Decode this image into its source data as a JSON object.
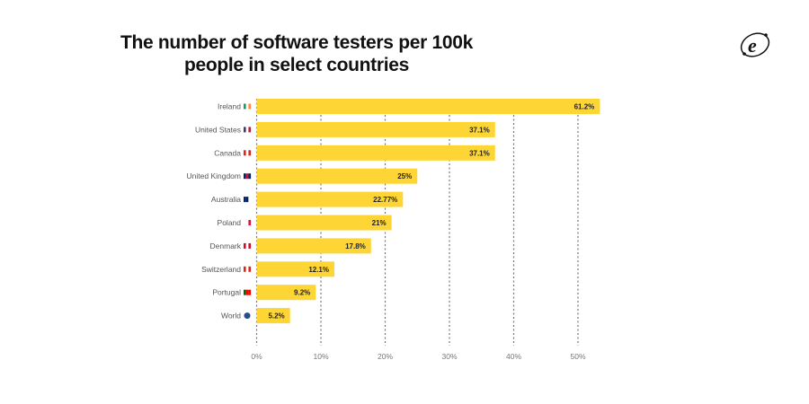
{
  "chart_data": {
    "type": "bar",
    "orientation": "horizontal",
    "title": "The number of software testers per 100k people in select countries",
    "categories": [
      "Ireland",
      "United States",
      "Canada",
      "United Kingdom",
      "Australia",
      "Poland",
      "Denmark",
      "Switzerland",
      "Portugal",
      "World"
    ],
    "category_icons": [
      "ireland-flag-icon",
      "us-flag-icon",
      "canada-flag-icon",
      "uk-flag-icon",
      "australia-flag-icon",
      "poland-flag-icon",
      "denmark-flag-icon",
      "switzerland-flag-icon",
      "portugal-flag-icon",
      "globe-icon"
    ],
    "values": [
      61.2,
      37.1,
      37.1,
      25,
      22.77,
      21,
      17.8,
      12.1,
      9.2,
      5.2
    ],
    "value_labels": [
      "61.2%",
      "37.1%",
      "37.1%",
      "25%",
      "22.77%",
      "21%",
      "17.8%",
      "12.1%",
      "9.2%",
      "5.2%"
    ],
    "xticks": [
      0,
      10,
      20,
      30,
      40,
      50
    ],
    "xtick_labels": [
      "0%",
      "10%",
      "20%",
      "30%",
      "40%",
      "50%"
    ],
    "xlim": [
      0,
      53.4
    ],
    "xlabel": "",
    "ylabel": "",
    "grid": "vertical dotted",
    "bar_color": "#FDD535"
  }
}
